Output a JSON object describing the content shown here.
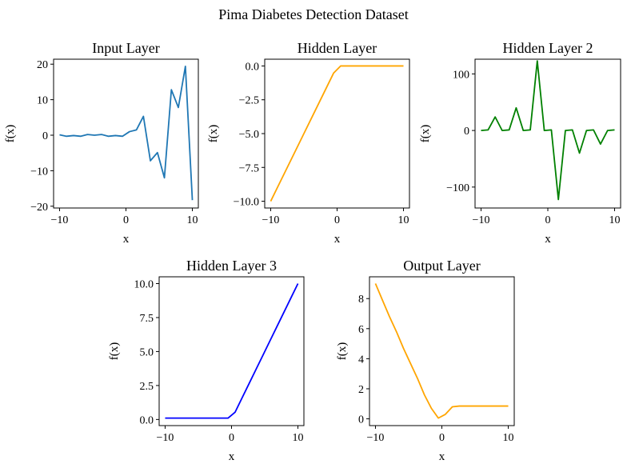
{
  "suptitle": "Pima Diabetes Detection Dataset",
  "colors": {
    "blue": "#1f77b4",
    "orange": "#ffa500",
    "green": "#008000",
    "pureblue": "#0000ff"
  },
  "chart_data": [
    {
      "type": "line",
      "title": "Input Layer",
      "xlabel": "x",
      "ylabel": "f(x)",
      "xlim": [
        -10.9,
        10.9
      ],
      "ylim": [
        -20.5,
        21.4
      ],
      "xticks": [
        -10,
        0,
        10
      ],
      "yticks": [
        -20,
        -10,
        0,
        10,
        20
      ],
      "color": "#1f77b4",
      "x": [
        -10,
        -8.95,
        -7.89,
        -6.84,
        -5.79,
        -4.74,
        -3.68,
        -2.63,
        -1.58,
        -0.53,
        0.53,
        1.58,
        2.63,
        3.68,
        4.74,
        5.79,
        6.84,
        7.89,
        8.95,
        10
      ],
      "y": [
        0.1,
        -0.3,
        -0.1,
        -0.3,
        0.2,
        0.0,
        0.2,
        -0.3,
        -0.1,
        -0.3,
        1.0,
        1.5,
        5.3,
        -7.2,
        -4.9,
        -12.0,
        12.8,
        7.8,
        19.4,
        -18.3
      ]
    },
    {
      "type": "line",
      "title": "Hidden Layer",
      "xlabel": "x",
      "ylabel": "f(x)",
      "xlim": [
        -10.9,
        10.9
      ],
      "ylim": [
        -10.5,
        0.5
      ],
      "xticks": [
        -10,
        0,
        10
      ],
      "yticks": [
        -10.0,
        -7.5,
        -5.0,
        -2.5,
        0.0
      ],
      "ytick_labels": [
        "−10.0",
        "−7.5",
        "−5.0",
        "−2.5",
        "0.0"
      ],
      "color": "#ffa500",
      "x": [
        -10,
        -8.95,
        -7.89,
        -6.84,
        -5.79,
        -4.74,
        -3.68,
        -2.63,
        -1.58,
        -0.53,
        0.53,
        1.58,
        2.63,
        3.68,
        4.74,
        5.79,
        6.84,
        7.89,
        8.95,
        10
      ],
      "y": [
        -10,
        -8.95,
        -7.89,
        -6.84,
        -5.79,
        -4.74,
        -3.68,
        -2.63,
        -1.58,
        -0.53,
        0.0,
        0.0,
        0.0,
        0.0,
        0.0,
        0.0,
        0.0,
        0.0,
        0.0,
        0.0
      ]
    },
    {
      "type": "line",
      "title": "Hidden Layer 2",
      "xlabel": "x",
      "ylabel": "f(x)",
      "xlim": [
        -10.9,
        10.9
      ],
      "ylim": [
        -137,
        126
      ],
      "xticks": [
        -10,
        0,
        10
      ],
      "yticks": [
        -100,
        0,
        100
      ],
      "color": "#008000",
      "x": [
        -10,
        -8.95,
        -7.89,
        -6.84,
        -5.79,
        -4.74,
        -3.68,
        -2.63,
        -1.58,
        -0.53,
        0.53,
        1.58,
        2.63,
        3.68,
        4.74,
        5.79,
        6.84,
        7.89,
        8.95,
        10
      ],
      "y": [
        0,
        1,
        24,
        0,
        1,
        40,
        0,
        1,
        123,
        0,
        1,
        -122,
        0,
        1,
        -40,
        0,
        1,
        -24,
        0,
        1
      ]
    },
    {
      "type": "line",
      "title": "Hidden Layer 3",
      "xlabel": "x",
      "ylabel": "f(x)",
      "xlim": [
        -10.9,
        10.9
      ],
      "ylim": [
        -0.45,
        10.5
      ],
      "xticks": [
        -10,
        0,
        10
      ],
      "yticks": [
        0.0,
        2.5,
        5.0,
        7.5,
        10.0
      ],
      "ytick_labels": [
        "0.0",
        "2.5",
        "5.0",
        "7.5",
        "10.0"
      ],
      "color": "#0000ff",
      "x": [
        -10,
        -8.95,
        -7.89,
        -6.84,
        -5.79,
        -4.74,
        -3.68,
        -2.63,
        -1.58,
        -0.53,
        0.53,
        1.58,
        2.63,
        3.68,
        4.74,
        5.79,
        6.84,
        7.89,
        8.95,
        10
      ],
      "y": [
        0.1,
        0.1,
        0.1,
        0.1,
        0.1,
        0.1,
        0.1,
        0.1,
        0.1,
        0.1,
        0.53,
        1.58,
        2.63,
        3.68,
        4.74,
        5.79,
        6.84,
        7.89,
        8.95,
        10
      ]
    },
    {
      "type": "line",
      "title": "Output Layer",
      "xlabel": "x",
      "ylabel": "f(x)",
      "xlim": [
        -10.9,
        10.9
      ],
      "ylim": [
        -0.45,
        9.45
      ],
      "xticks": [
        -10,
        0,
        10
      ],
      "yticks": [
        0,
        2,
        4,
        6,
        8
      ],
      "color": "#ffa500",
      "x": [
        -10,
        -8.95,
        -7.89,
        -6.84,
        -5.79,
        -4.74,
        -3.68,
        -2.63,
        -1.58,
        -0.53,
        0.53,
        1.58,
        2.63,
        3.68,
        4.74,
        5.79,
        6.84,
        7.89,
        8.95,
        10
      ],
      "y": [
        9.0,
        7.9,
        6.8,
        5.8,
        4.7,
        3.7,
        2.7,
        1.6,
        0.7,
        0.05,
        0.3,
        0.8,
        0.85,
        0.85,
        0.85,
        0.85,
        0.85,
        0.85,
        0.85,
        0.85
      ]
    }
  ]
}
